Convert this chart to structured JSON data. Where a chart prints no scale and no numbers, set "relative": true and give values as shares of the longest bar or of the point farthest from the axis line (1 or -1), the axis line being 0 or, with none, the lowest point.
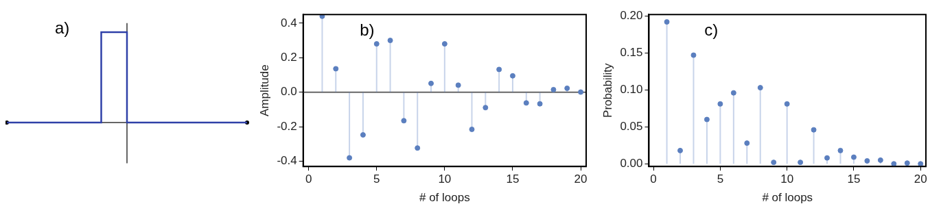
{
  "chart_data": [
    {
      "type": "step",
      "relative": true,
      "categories": [
        null,
        null,
        null,
        null,
        null,
        null,
        null,
        null,
        null,
        null,
        null,
        null,
        null,
        null,
        null,
        null,
        null,
        null,
        null,
        null,
        null,
        null,
        null,
        null,
        null,
        null,
        null,
        null,
        null
      ],
      "series": [
        {
          "color": "#2f40a8",
          "values": [
            0,
            0,
            0,
            0,
            0,
            0,
            0,
            0,
            0,
            0,
            0,
            1,
            1,
            1,
            0,
            0,
            0,
            0,
            0,
            0,
            0,
            0,
            0,
            0,
            0,
            0,
            0,
            0,
            0
          ]
        }
      ],
      "annotations": [
        "a)"
      ]
    },
    {
      "type": "lollipop",
      "x": [
        1,
        2,
        3,
        4,
        5,
        6,
        7,
        8,
        9,
        10,
        11,
        12,
        13,
        14,
        15,
        16,
        17,
        18,
        19,
        20
      ],
      "values": [
        0.44,
        0.136,
        -0.38,
        -0.247,
        0.28,
        0.3,
        -0.165,
        -0.323,
        0.051,
        0.28,
        0.041,
        -0.215,
        -0.089,
        0.132,
        0.095,
        -0.062,
        -0.067,
        0.015,
        0.023,
        0.001
      ],
      "color": "#5b7fbf",
      "xlim": [
        -0.4,
        20.4
      ],
      "xticks": [
        0,
        5,
        10,
        15,
        20
      ],
      "ylim": [
        -0.43,
        0.45
      ],
      "yticks": [
        -0.4,
        -0.2,
        {
          "value": 0,
          "label": "0.0"
        },
        0.2,
        0.4
      ],
      "xlabel": "# of loops",
      "ylabel": "Amplitude",
      "annotations": [
        "b)"
      ],
      "ref_lines": [
        {
          "axis": "y",
          "value": 0,
          "color": "#666666"
        }
      ]
    },
    {
      "type": "lollipop",
      "x": [
        1,
        2,
        3,
        4,
        5,
        6,
        7,
        8,
        9,
        10,
        11,
        12,
        13,
        14,
        15,
        16,
        17,
        18,
        19,
        20
      ],
      "values": [
        0.192,
        0.018,
        0.147,
        0.06,
        0.081,
        0.096,
        0.028,
        0.103,
        0.002,
        0.081,
        0.002,
        0.046,
        0.008,
        0.018,
        0.009,
        0.004,
        0.005,
        0,
        0.001,
        0
      ],
      "color": "#5b7fbf",
      "xlim": [
        -0.34,
        20.4
      ],
      "xticks": [
        0,
        5,
        10,
        15,
        20
      ],
      "ylim": [
        -0.0036,
        0.202
      ],
      "yticks": [
        {
          "value": 0,
          "label": "0.00"
        },
        {
          "value": 0.05,
          "label": "0.05"
        },
        {
          "value": 0.1,
          "label": "0.10"
        },
        {
          "value": 0.15,
          "label": "0.15"
        },
        {
          "value": 0.2,
          "label": "0.20"
        }
      ],
      "xlabel": "# of loops",
      "ylabel": "Probability",
      "annotations": [
        "c)"
      ]
    }
  ]
}
